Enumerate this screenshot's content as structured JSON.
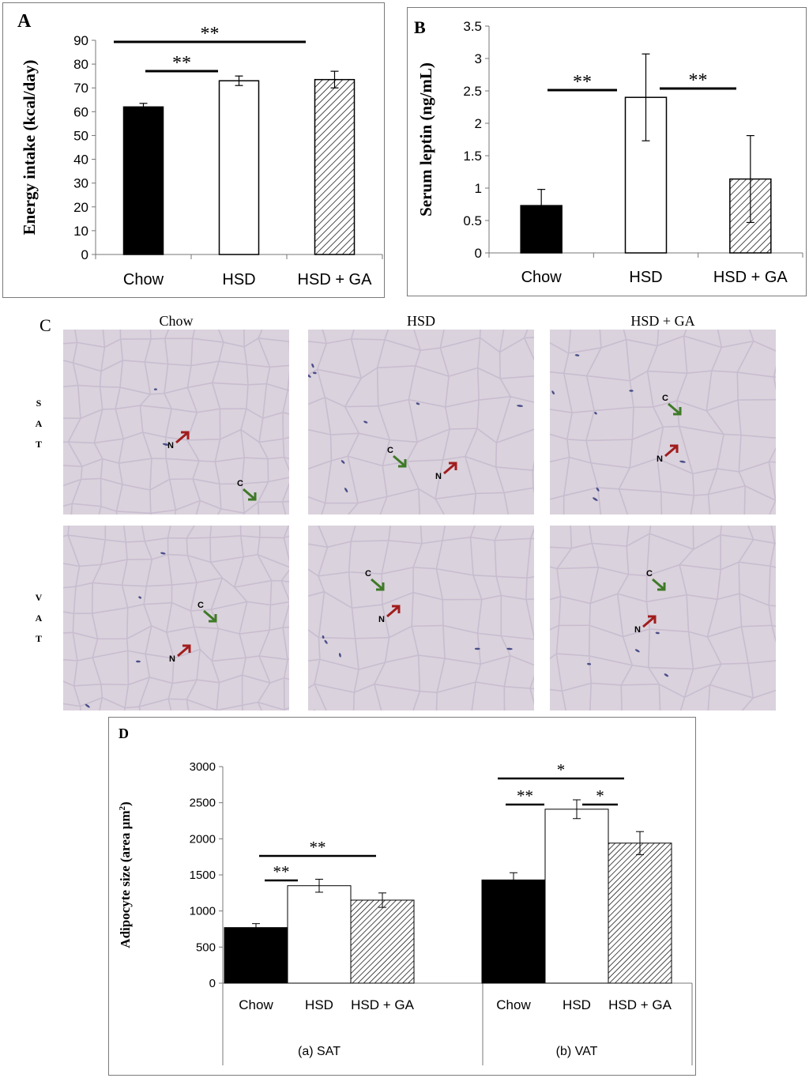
{
  "panels": {
    "a_label": "A",
    "b_label": "B",
    "c_label": "C",
    "d_label": "D"
  },
  "histology": {
    "columns": [
      "Chow",
      "HSD",
      "HSD + GA"
    ],
    "rows": [
      {
        "letters": [
          "S",
          "A",
          "T"
        ]
      },
      {
        "letters": [
          "V",
          "A",
          "T"
        ]
      }
    ],
    "marker_c": "C",
    "marker_n": "N",
    "arrow_colors": {
      "nucleus": "#a11d1d",
      "cell": "#3f7a27"
    },
    "stain_color": "#c8bdd0"
  },
  "chart_data": [
    {
      "type": "bar",
      "panel": "A",
      "categories": [
        "Chow",
        "HSD",
        "HSD + GA"
      ],
      "values": [
        62,
        73,
        73.5
      ],
      "errors": [
        1.5,
        2,
        3.5
      ],
      "fills": [
        "solid-black",
        "white",
        "hatched"
      ],
      "ylabel": "Energy intake (kcal/day)",
      "ylim": [
        0,
        90
      ],
      "yticks": [
        "0",
        "10",
        "20",
        "30",
        "40",
        "50",
        "60",
        "70",
        "80",
        "90"
      ],
      "significance": [
        {
          "from": 0,
          "to": 1,
          "label": "**"
        },
        {
          "from": 0,
          "to": 2,
          "label": "**"
        }
      ]
    },
    {
      "type": "bar",
      "panel": "B",
      "categories": [
        "Chow",
        "HSD",
        "HSD + GA"
      ],
      "values": [
        0.73,
        2.4,
        1.14
      ],
      "errors": [
        0.25,
        0.67,
        0.67
      ],
      "fills": [
        "solid-black",
        "white",
        "hatched"
      ],
      "ylabel": "Serum leptin  (ng/mL)",
      "ylim": [
        0,
        3.5
      ],
      "yticks": [
        "0",
        "0.5",
        "1",
        "1.5",
        "2",
        "2.5",
        "3",
        "3.5"
      ],
      "significance": [
        {
          "from": 0,
          "to": 1,
          "label": "**"
        },
        {
          "from": 1,
          "to": 2,
          "label": "**"
        }
      ]
    },
    {
      "type": "bar",
      "panel": "D",
      "ylabel": "Adipocyte size (area µm",
      "ylabel_sup": "2",
      "ylabel_end": ")",
      "ylim": [
        0,
        3000
      ],
      "yticks": [
        "0",
        "500",
        "1000",
        "1500",
        "2000",
        "2500",
        "3000"
      ],
      "groups": [
        {
          "name": "(a) SAT",
          "categories": [
            "Chow",
            "HSD",
            "HSD + GA"
          ],
          "values": [
            770,
            1350,
            1150
          ],
          "errors": [
            55,
            90,
            100
          ],
          "significance": [
            {
              "from": 0,
              "to": 1,
              "label": "**"
            },
            {
              "from": 0,
              "to": 2,
              "label": "**"
            }
          ]
        },
        {
          "name": "(b) VAT",
          "categories": [
            "Chow",
            "HSD",
            "HSD + GA"
          ],
          "values": [
            1430,
            2410,
            1940
          ],
          "errors": [
            100,
            130,
            160
          ],
          "significance": [
            {
              "from": 0,
              "to": 1,
              "label": "**"
            },
            {
              "from": 1,
              "to": 2,
              "label": "*"
            },
            {
              "from": 0,
              "to": 2,
              "label": "*"
            }
          ]
        }
      ],
      "fills": [
        "solid-black",
        "white",
        "hatched"
      ]
    }
  ]
}
